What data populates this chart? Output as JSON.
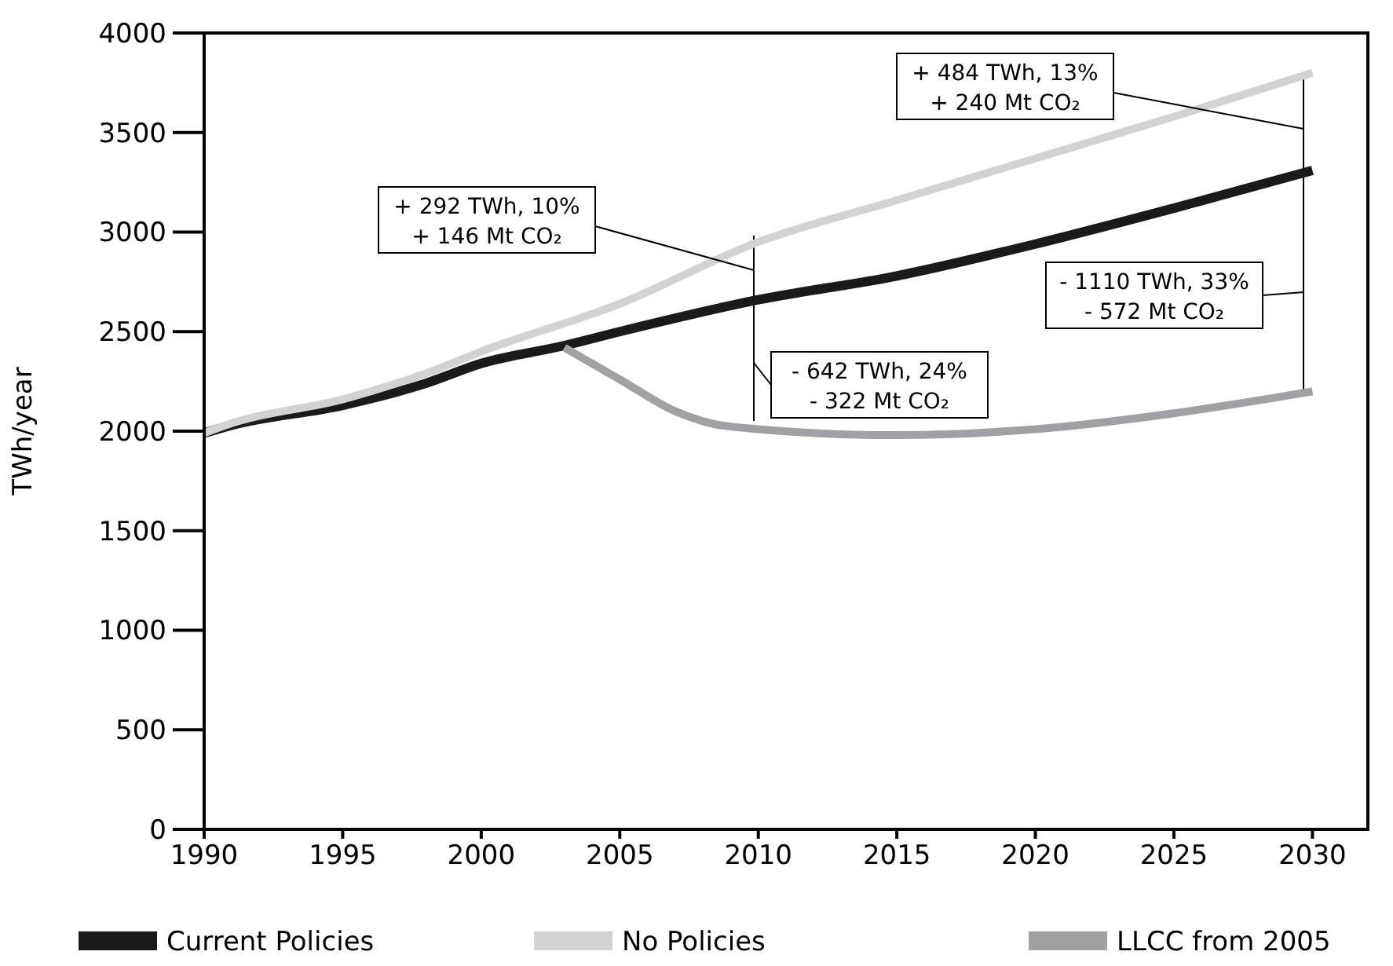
{
  "chart_data": {
    "type": "line",
    "ylabel": "TWh/year",
    "xlim": [
      1990,
      2032
    ],
    "ylim": [
      0,
      4000
    ],
    "xticks": [
      1990,
      1995,
      2000,
      2005,
      2010,
      2015,
      2020,
      2025,
      2030
    ],
    "yticks": [
      0,
      500,
      1000,
      1500,
      2000,
      2500,
      3000,
      3500,
      4000
    ],
    "grid": false,
    "legend": "bottom",
    "marker": "none",
    "line_style": "solid",
    "series": [
      {
        "name": "Current Policies",
        "color": "#1a1a1a",
        "x": [
          1990,
          1991,
          1995,
          1998,
          2000,
          2003,
          2005,
          2010,
          2015,
          2020,
          2025,
          2030
        ],
        "values": [
          1990,
          2030,
          2130,
          2240,
          2340,
          2430,
          2500,
          2660,
          2780,
          2940,
          3120,
          3310
        ]
      },
      {
        "name": "No Policies",
        "color": "#d0d2d3",
        "x": [
          1990,
          1991,
          1995,
          1998,
          2000,
          2005,
          2010,
          2015,
          2020,
          2025,
          2030
        ],
        "values": [
          1990,
          2040,
          2160,
          2290,
          2400,
          2640,
          2950,
          3160,
          3370,
          3580,
          3800
        ]
      },
      {
        "name": "LLCC from 2005",
        "color": "#a0a1a5",
        "x": [
          2003,
          2005,
          2007,
          2008,
          2010,
          2015,
          2020,
          2025,
          2030
        ],
        "values": [
          2420,
          2260,
          2100,
          2050,
          2010,
          1980,
          2010,
          2090,
          2200
        ]
      }
    ],
    "annotations": [
      "+ 292 TWh, 10%\n+ 146 Mt CO₂",
      "- 642 TWh, 24%\n- 322 Mt CO₂",
      "+ 484 TWh, 13%\n+ 240 Mt CO₂",
      "- 1110 TWh, 33%\n- 572 Mt CO₂"
    ]
  }
}
